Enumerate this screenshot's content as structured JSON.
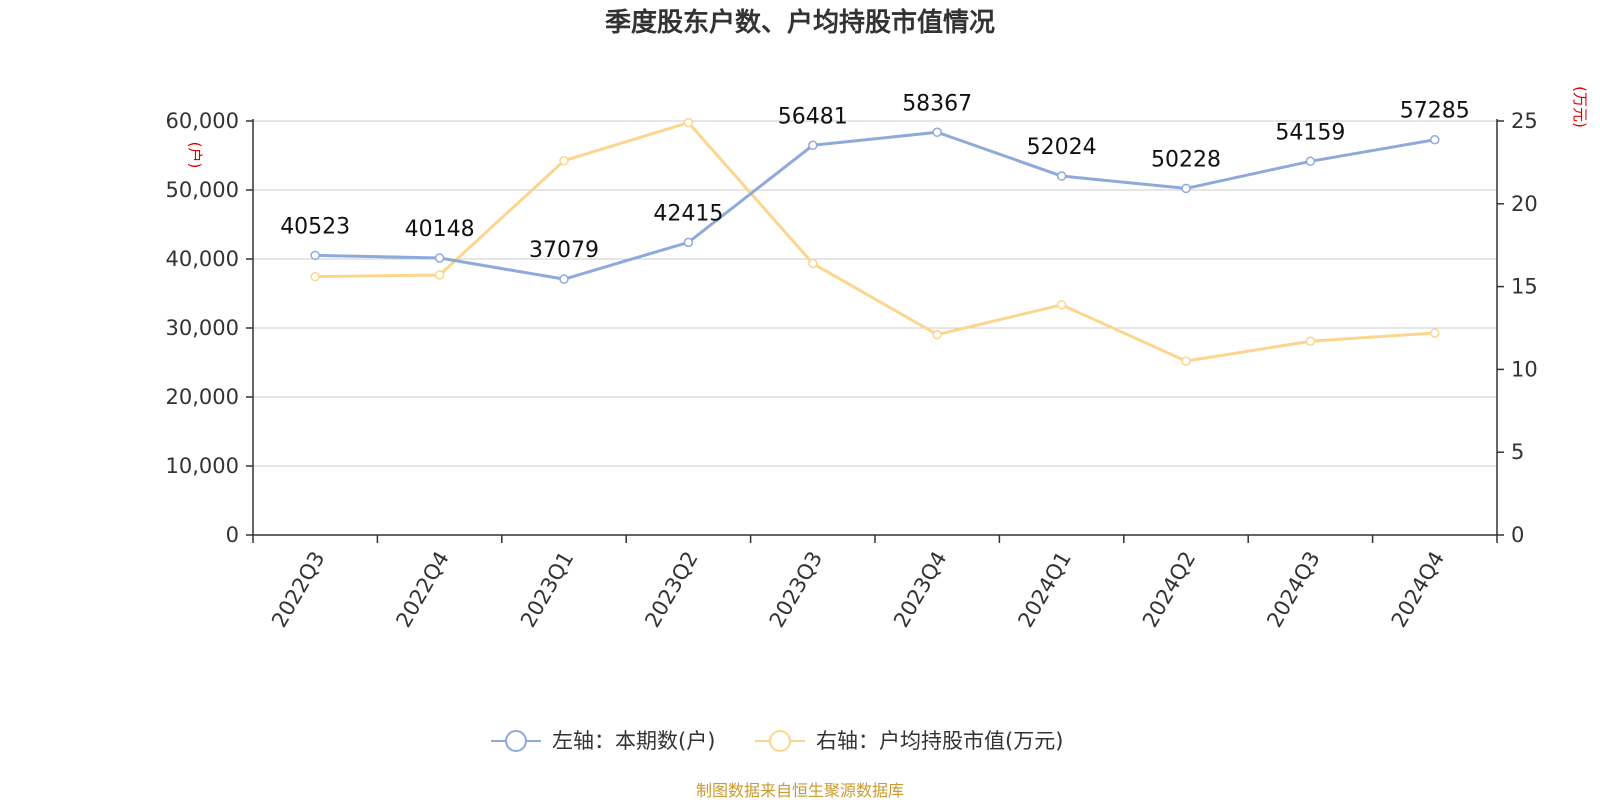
{
  "colors": {
    "left_series": "#8eaadb",
    "right_series": "#fcd68f",
    "unit_label": "#e00000",
    "source": "#c99a2e",
    "grid": "#cccccc",
    "axis": "#333333"
  },
  "source_text": "制图数据来自恒生聚源数据库",
  "chart_data": {
    "type": "line",
    "title": "季度股东户数、户均持股市值情况",
    "categories": [
      "2022Q3",
      "2022Q4",
      "2023Q1",
      "2023Q2",
      "2023Q3",
      "2023Q4",
      "2024Q1",
      "2024Q2",
      "2024Q3",
      "2024Q4"
    ],
    "left_axis": {
      "unit": "(户)",
      "ylim": [
        0,
        60000
      ],
      "ticks": [
        0,
        10000,
        20000,
        30000,
        40000,
        50000,
        60000
      ],
      "tick_labels": [
        "0",
        "10,000",
        "20,000",
        "30,000",
        "40,000",
        "50,000",
        "60,000"
      ]
    },
    "right_axis": {
      "unit": "(万元)",
      "ylim": [
        0,
        25
      ],
      "ticks": [
        0,
        5,
        10,
        15,
        20,
        25
      ],
      "tick_labels": [
        "0",
        "5",
        "10",
        "15",
        "20",
        "25"
      ]
    },
    "grid": true,
    "legend_position": "bottom-center",
    "series": [
      {
        "name": "左轴：本期数(户)",
        "axis": "left",
        "values": [
          40523,
          40148,
          37079,
          42415,
          56481,
          58367,
          52024,
          50228,
          54159,
          57285
        ],
        "data_labels": [
          "40523",
          "40148",
          "37079",
          "42415",
          "56481",
          "58367",
          "52024",
          "50228",
          "54159",
          "57285"
        ]
      },
      {
        "name": "右轴：户均持股市值(万元)",
        "axis": "right",
        "values": [
          15.6,
          15.7,
          22.6,
          24.9,
          16.4,
          12.1,
          13.9,
          10.5,
          11.7,
          12.2
        ]
      }
    ]
  }
}
